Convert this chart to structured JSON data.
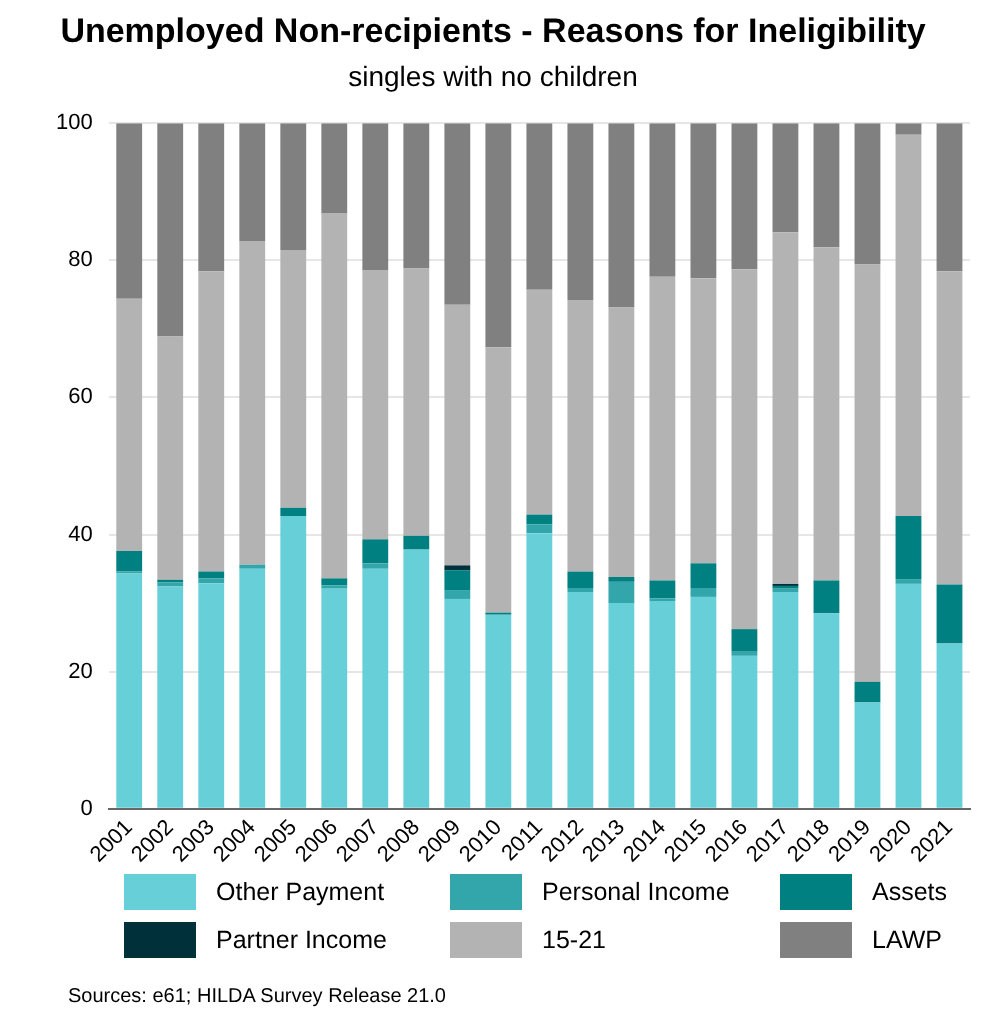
{
  "chart_data": {
    "type": "bar",
    "stacked": true,
    "title": "Unemployed Non-recipients - Reasons for Ineligibility",
    "subtitle": "singles with no children",
    "categories": [
      "2001",
      "2002",
      "2003",
      "2004",
      "2005",
      "2006",
      "2007",
      "2008",
      "2009",
      "2010",
      "2011",
      "2012",
      "2013",
      "2014",
      "2015",
      "2016",
      "2017",
      "2018",
      "2019",
      "2020",
      "2021"
    ],
    "series": [
      {
        "name": "Other Payment",
        "color": "#66cfd8",
        "values": [
          34.3,
          32.4,
          32.9,
          35.0,
          42.7,
          32.1,
          35.0,
          37.8,
          30.6,
          28.3,
          40.2,
          31.6,
          30.0,
          30.3,
          30.9,
          22.3,
          31.6,
          28.5,
          15.5,
          32.8,
          24.1
        ]
      },
      {
        "name": "Personal Income",
        "color": "#33a6ac",
        "values": [
          0.3,
          0.6,
          0.7,
          0.6,
          0,
          0.5,
          0.8,
          0,
          1.3,
          0,
          1.3,
          0.6,
          3.1,
          0.4,
          1.3,
          0.6,
          0.5,
          0,
          0,
          0.7,
          0
        ]
      },
      {
        "name": "Assets",
        "color": "#008080",
        "values": [
          3.0,
          0.4,
          1.0,
          0,
          1.2,
          1.0,
          3.5,
          2.0,
          2.9,
          0.3,
          1.4,
          2.4,
          0.7,
          2.6,
          3.6,
          3.3,
          0.4,
          4.8,
          3.0,
          9.2,
          8.6
        ]
      },
      {
        "name": "Partner Income",
        "color": "#00313a",
        "values": [
          0,
          0,
          0,
          0,
          0,
          0,
          0,
          0,
          0.7,
          0,
          0,
          0,
          0,
          0,
          0,
          0,
          0.3,
          0,
          0,
          0,
          0
        ]
      },
      {
        "name": "15-21",
        "color": "#b3b3b3",
        "values": [
          36.8,
          35.5,
          43.8,
          47.2,
          37.6,
          53.3,
          39.3,
          39.0,
          38.0,
          38.7,
          32.8,
          39.6,
          39.3,
          44.3,
          41.6,
          52.5,
          51.3,
          48.6,
          60.9,
          55.6,
          45.7
        ]
      },
      {
        "name": "LAWP",
        "color": "#808080",
        "values": [
          25.6,
          31.1,
          21.6,
          17.2,
          18.5,
          13.1,
          21.4,
          21.2,
          26.5,
          32.7,
          24.3,
          25.8,
          26.9,
          22.4,
          22.6,
          21.3,
          15.9,
          18.1,
          20.6,
          1.7,
          21.6
        ]
      }
    ],
    "ylim": [
      0,
      100
    ],
    "yticks": [
      0,
      20,
      40,
      60,
      80,
      100
    ],
    "grid": "y",
    "legend": "bottom",
    "annotations": [
      "Sources: e61; HILDA Survey Release 21.0"
    ]
  }
}
